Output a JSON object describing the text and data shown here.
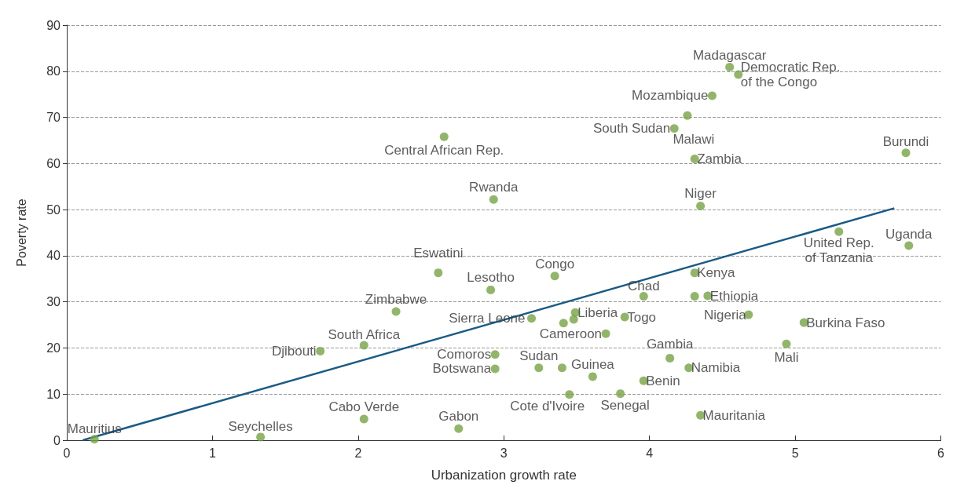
{
  "chart_data": {
    "type": "scatter",
    "xlabel": "Urbanization growth rate",
    "ylabel": "Poverty rate",
    "xlim": [
      0,
      6
    ],
    "xticks": [
      0,
      1,
      2,
      3,
      4,
      5,
      6
    ],
    "ylim": [
      0,
      90
    ],
    "yticks": [
      0,
      10,
      20,
      30,
      40,
      50,
      60,
      70,
      80,
      90
    ],
    "grid": "y",
    "marker": "circle",
    "series": [
      {
        "color": "#77a443",
        "x": [
          0.19,
          1.33,
          2.04,
          2.69,
          1.74,
          2.04,
          2.26,
          2.55,
          2.91,
          2.59,
          2.93,
          2.94,
          2.94,
          3.19,
          3.35,
          3.41,
          3.49,
          3.48,
          3.24,
          3.4,
          3.61,
          3.45,
          3.8,
          3.83,
          3.7,
          3.96,
          3.96,
          4.14,
          4.27,
          4.35,
          4.31,
          4.31,
          4.4,
          4.68,
          4.94,
          5.06,
          5.3,
          5.78,
          5.76,
          4.35,
          4.31,
          4.17,
          4.26,
          4.43,
          4.55,
          4.61
        ],
        "values": [
          0.2,
          0.7,
          4.6,
          2.5,
          19.3,
          20.6,
          27.9,
          36.3,
          32.6,
          65.8,
          52.2,
          18.6,
          15.5,
          26.4,
          35.6,
          25.4,
          27.7,
          26.2,
          15.7,
          15.7,
          13.8,
          9.9,
          10.1,
          26.7,
          23.1,
          31.2,
          12.9,
          17.8,
          15.7,
          5.4,
          36.3,
          31.2,
          31.3,
          27.2,
          20.9,
          25.5,
          45.2,
          42.2,
          62.3,
          50.8,
          61.0,
          67.6,
          70.4,
          74.7,
          80.9,
          79.3
        ]
      },
      {
        "type": "line",
        "marker": "none",
        "color": "#1a5b86",
        "x": [
          0.11,
          5.68
        ],
        "values": [
          0,
          50.3
        ]
      }
    ],
    "annotations": [
      {
        "text": "Mauritius",
        "x": 0.19,
        "y": 0.2
      },
      {
        "text": "Seychelles",
        "x": 1.33,
        "y": 0.7
      },
      {
        "text": "Cabo Verde",
        "x": 2.04,
        "y": 4.6
      },
      {
        "text": "Gabon",
        "x": 2.69,
        "y": 2.5
      },
      {
        "text": "Djibouti",
        "x": 1.74,
        "y": 19.3
      },
      {
        "text": "South Africa",
        "x": 2.04,
        "y": 20.6
      },
      {
        "text": "Zimbabwe",
        "x": 2.26,
        "y": 27.9
      },
      {
        "text": "Eswatini",
        "x": 2.55,
        "y": 36.3
      },
      {
        "text": "Lesotho",
        "x": 2.91,
        "y": 32.6
      },
      {
        "text": "Central African Rep.",
        "x": 2.59,
        "y": 65.8
      },
      {
        "text": "Rwanda",
        "x": 2.93,
        "y": 52.2
      },
      {
        "text": "Comoros",
        "x": 2.94,
        "y": 18.6
      },
      {
        "text": "Botswana",
        "x": 2.94,
        "y": 15.5
      },
      {
        "text": "Sierra Leone",
        "x": 3.19,
        "y": 26.4
      },
      {
        "text": "Congo",
        "x": 3.35,
        "y": 35.6
      },
      {
        "text": "Cameroon",
        "x": 3.7,
        "y": 23.1
      },
      {
        "text": "Liberia",
        "x": 3.49,
        "y": 27.7
      },
      {
        "text": "Sudan",
        "x": 3.24,
        "y": 15.7
      },
      {
        "text": "Guinea",
        "x": 3.61,
        "y": 13.8
      },
      {
        "text": "Cote d'Ivoire",
        "x": 3.45,
        "y": 9.9
      },
      {
        "text": "Senegal",
        "x": 3.8,
        "y": 10.1
      },
      {
        "text": "Togo",
        "x": 3.83,
        "y": 26.7
      },
      {
        "text": "Chad",
        "x": 3.96,
        "y": 31.2
      },
      {
        "text": "Benin",
        "x": 3.96,
        "y": 12.9
      },
      {
        "text": "Gambia",
        "x": 4.14,
        "y": 17.8
      },
      {
        "text": "Namibia",
        "x": 4.27,
        "y": 15.7
      },
      {
        "text": "Mauritania",
        "x": 4.35,
        "y": 5.4
      },
      {
        "text": "Kenya",
        "x": 4.31,
        "y": 36.3
      },
      {
        "text": "Ethiopia",
        "x": 4.4,
        "y": 31.3
      },
      {
        "text": "Nigeria",
        "x": 4.68,
        "y": 27.2
      },
      {
        "text": "Mali",
        "x": 4.94,
        "y": 20.9
      },
      {
        "text": "Burkina Faso",
        "x": 5.06,
        "y": 25.5
      },
      {
        "text": "United Rep.\nof Tanzania",
        "x": 5.3,
        "y": 45.2
      },
      {
        "text": "Uganda",
        "x": 5.78,
        "y": 42.2
      },
      {
        "text": "Burundi",
        "x": 5.76,
        "y": 62.3
      },
      {
        "text": "Niger",
        "x": 4.35,
        "y": 50.8
      },
      {
        "text": "Zambia",
        "x": 4.31,
        "y": 61.0
      },
      {
        "text": "Malawi",
        "x": 4.26,
        "y": 70.4
      },
      {
        "text": "South Sudan",
        "x": 4.17,
        "y": 67.6
      },
      {
        "text": "Mozambique",
        "x": 4.43,
        "y": 74.7
      },
      {
        "text": "Madagascar",
        "x": 4.55,
        "y": 80.9
      },
      {
        "text": "Democratic Rep.\nof the Congo",
        "x": 4.61,
        "y": 79.3
      }
    ]
  }
}
